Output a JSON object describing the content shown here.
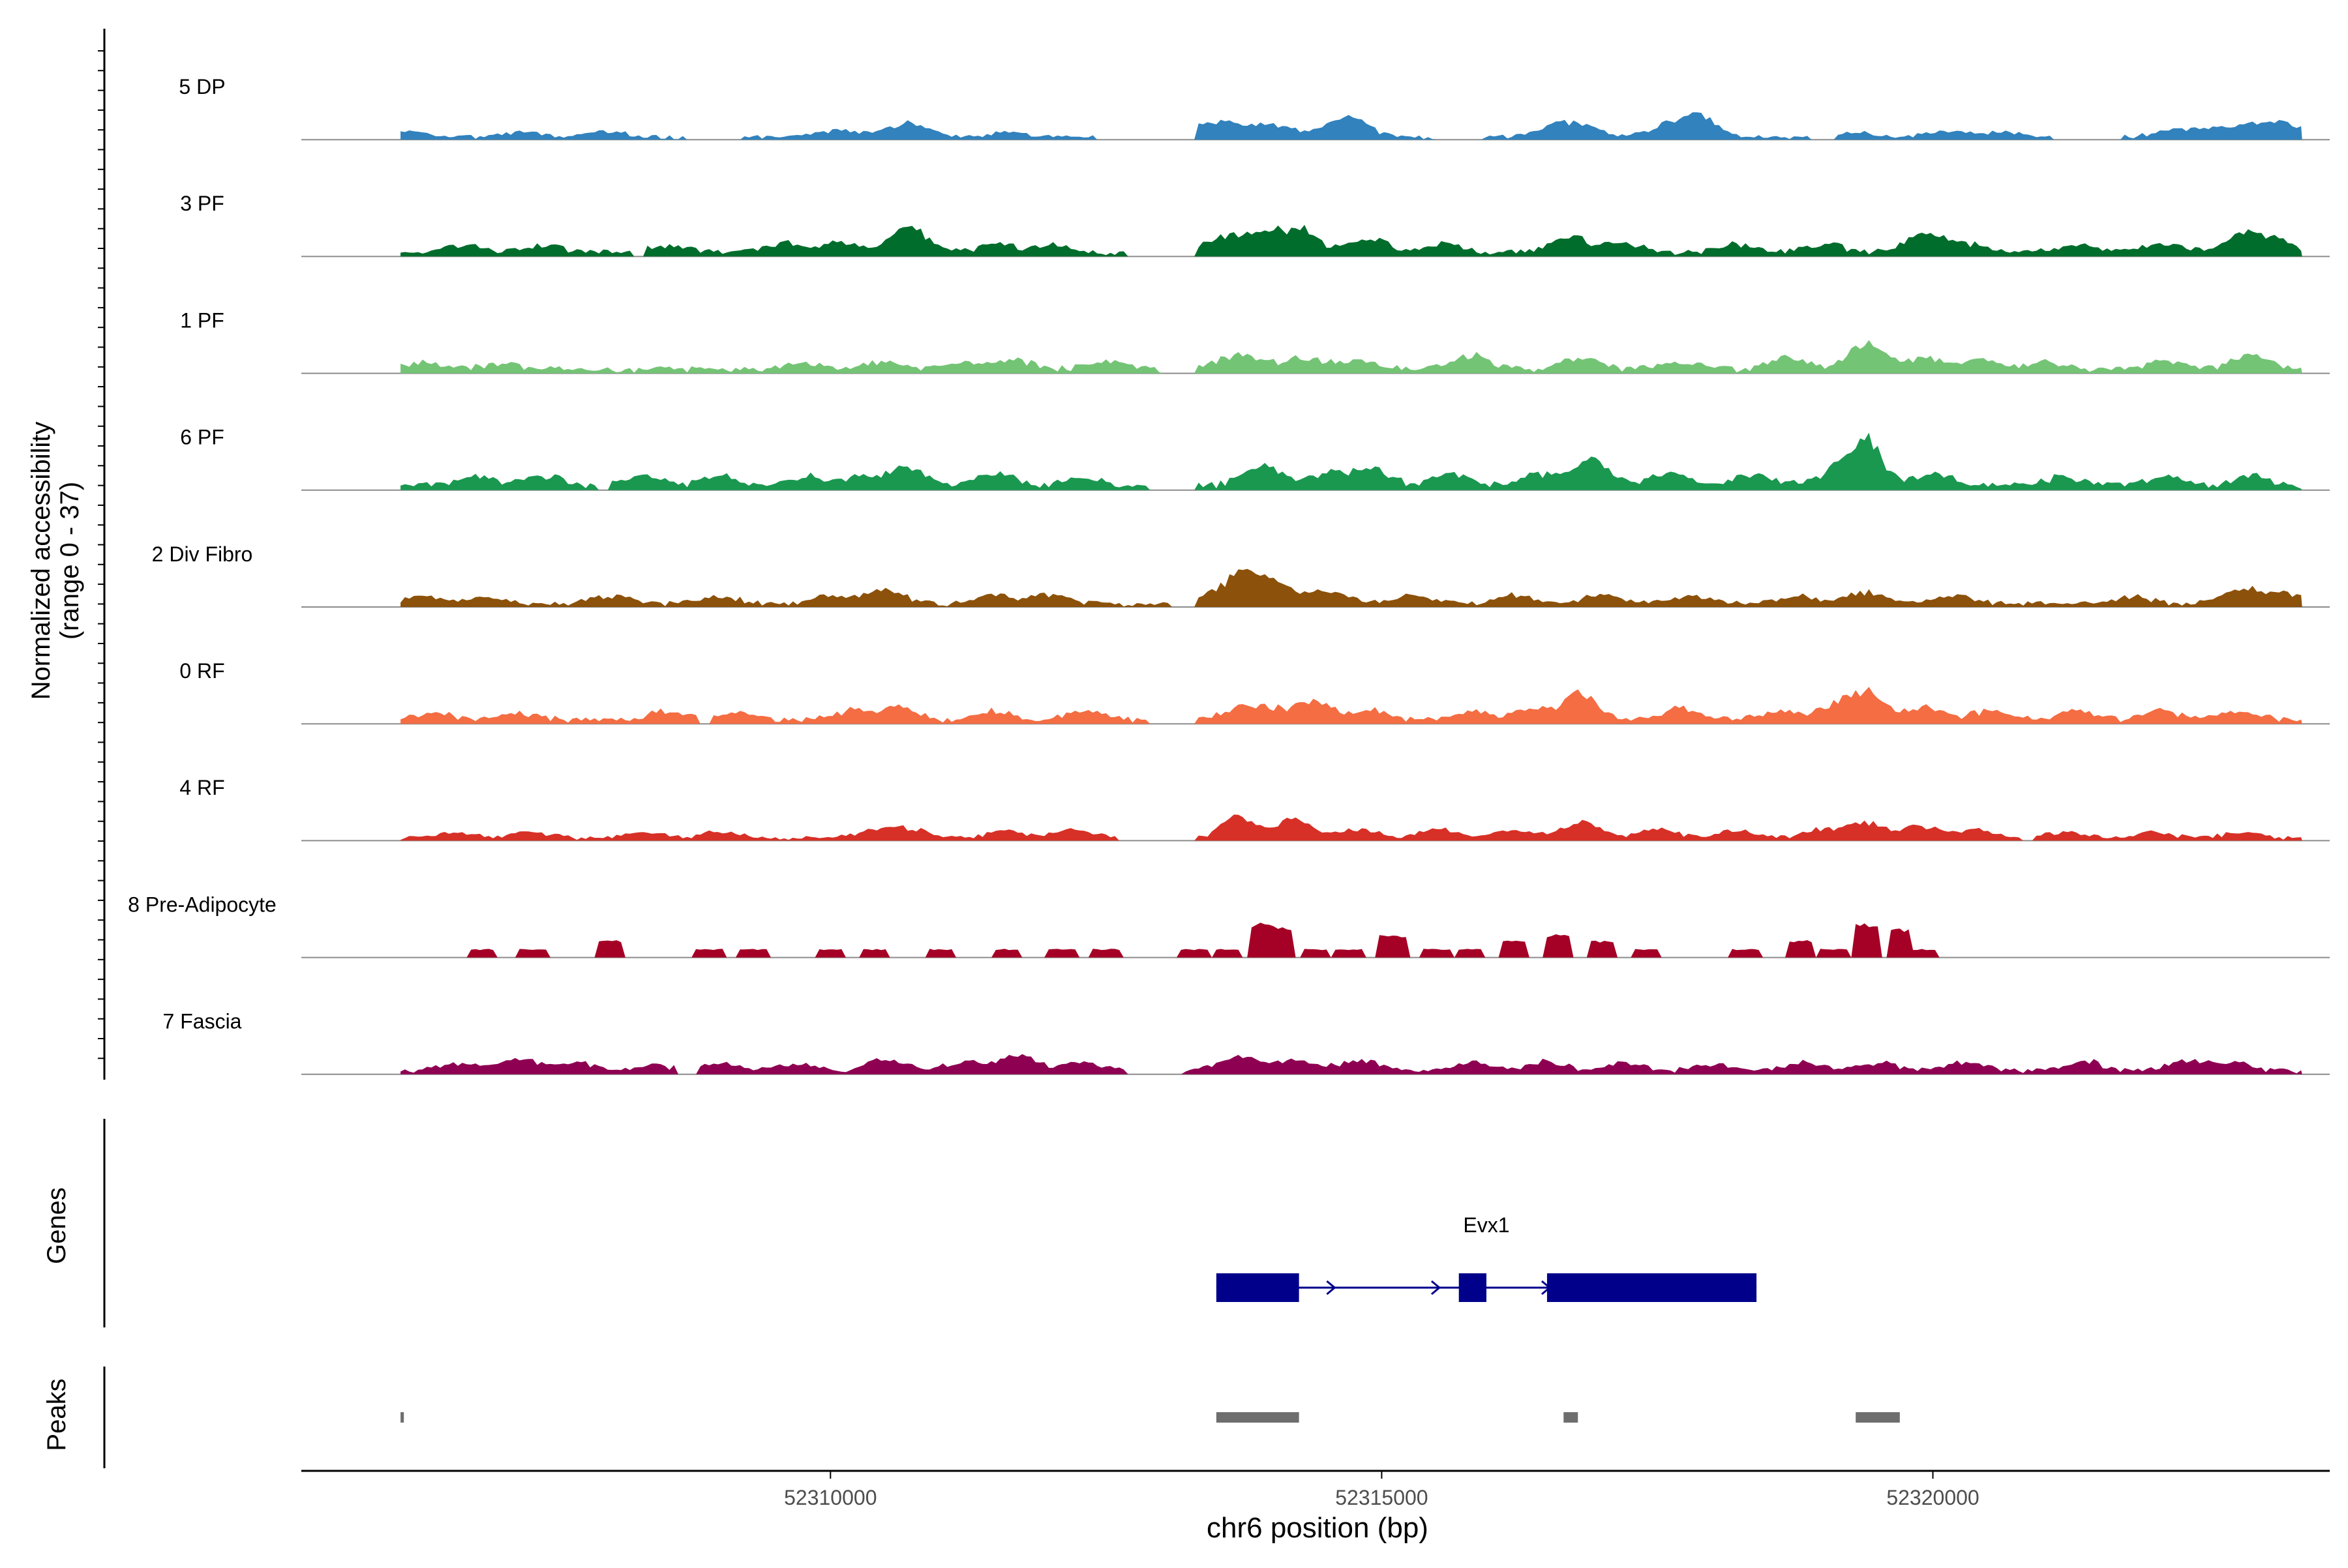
{
  "chart_data": {
    "type": "area",
    "title": "",
    "xlabel": "chr6 position (bp)",
    "ylabel": "Normalized accessibility\n(range 0 - 37)",
    "ylabel_lines": [
      "Normalized accessibility",
      "(range 0 - 37)"
    ],
    "y_range": [
      0,
      37
    ],
    "xlim": [
      52305200,
      52323600
    ],
    "data_extent": [
      52306100,
      52323350
    ],
    "x_ticks": [
      52310000,
      52315000,
      52320000
    ],
    "x_tick_labels": [
      "52310000",
      "52315000",
      "52320000"
    ],
    "tracks": [
      {
        "name": "5 DP",
        "color": "#3182bd",
        "baseline": 1.2,
        "peaks": [
          [
            52306200,
            2,
            50
          ],
          [
            52307200,
            1.8,
            50
          ],
          [
            52308000,
            1.8,
            60
          ],
          [
            52310100,
            2.2,
            80
          ],
          [
            52310700,
            5,
            60
          ],
          [
            52311600,
            1.6,
            50
          ],
          [
            52313500,
            5,
            70
          ],
          [
            52314000,
            4,
            80
          ],
          [
            52314700,
            7,
            60
          ],
          [
            52316700,
            5,
            80
          ],
          [
            52317600,
            4,
            60
          ],
          [
            52317900,
            7,
            50
          ],
          [
            52319300,
            1.6,
            60
          ],
          [
            52320100,
            2,
            60
          ],
          [
            52320600,
            2,
            60
          ],
          [
            52322300,
            3,
            80
          ],
          [
            52322900,
            4,
            80
          ],
          [
            52323200,
            3,
            60
          ]
        ],
        "gaps": [
          [
            52308700,
            52309200
          ],
          [
            52312400,
            52313300
          ],
          [
            52315500,
            52315900
          ],
          [
            52318900,
            52319100
          ],
          [
            52321100,
            52321700
          ]
        ]
      },
      {
        "name": "3 PF",
        "color": "#006d2c",
        "baseline": 1.8,
        "peaks": [
          [
            52306700,
            2.5,
            60
          ],
          [
            52307400,
            2.5,
            60
          ],
          [
            52308500,
            2.5,
            60
          ],
          [
            52309600,
            3,
            60
          ],
          [
            52310100,
            3,
            60
          ],
          [
            52310700,
            9,
            55
          ],
          [
            52311500,
            3,
            60
          ],
          [
            52312000,
            2.5,
            60
          ],
          [
            52313600,
            5,
            70
          ],
          [
            52314000,
            6,
            60
          ],
          [
            52314300,
            7,
            50
          ],
          [
            52314900,
            5,
            60
          ],
          [
            52315600,
            3,
            60
          ],
          [
            52316700,
            5,
            60
          ],
          [
            52317200,
            3,
            60
          ],
          [
            52318200,
            3,
            60
          ],
          [
            52319000,
            3,
            60
          ],
          [
            52319900,
            6,
            60
          ],
          [
            52320300,
            3,
            60
          ],
          [
            52321300,
            2.5,
            60
          ],
          [
            52322100,
            3,
            60
          ],
          [
            52322800,
            6,
            55
          ],
          [
            52323100,
            4,
            60
          ]
        ],
        "gaps": [
          [
            52312700,
            52313300
          ],
          [
            52308200,
            52308300
          ]
        ]
      },
      {
        "name": "1 PF",
        "color": "#74c476",
        "baseline": 1.8,
        "peaks": [
          [
            52306300,
            2.5,
            60
          ],
          [
            52307000,
            2,
            60
          ],
          [
            52309800,
            2,
            60
          ],
          [
            52310500,
            3,
            60
          ],
          [
            52311200,
            2,
            60
          ],
          [
            52311700,
            3,
            60
          ],
          [
            52312500,
            2.5,
            60
          ],
          [
            52313700,
            5,
            70
          ],
          [
            52314300,
            4,
            60
          ],
          [
            52314800,
            3,
            60
          ],
          [
            52315800,
            5,
            60
          ],
          [
            52316800,
            4,
            60
          ],
          [
            52317700,
            2.5,
            60
          ],
          [
            52318700,
            4,
            60
          ],
          [
            52319400,
            9,
            55
          ],
          [
            52319900,
            4,
            60
          ],
          [
            52320400,
            3,
            60
          ],
          [
            52321000,
            2.5,
            60
          ],
          [
            52322100,
            3,
            60
          ],
          [
            52322900,
            5,
            60
          ]
        ],
        "gaps": [
          [
            52313000,
            52313300
          ]
        ]
      },
      {
        "name": "6 PF",
        "color": "#1a9850",
        "baseline": 2.0,
        "peaks": [
          [
            52306800,
            3,
            60
          ],
          [
            52307400,
            3,
            60
          ],
          [
            52308300,
            3,
            60
          ],
          [
            52309000,
            3,
            60
          ],
          [
            52309800,
            3,
            60
          ],
          [
            52310300,
            3,
            60
          ],
          [
            52310700,
            6,
            60
          ],
          [
            52311500,
            4,
            60
          ],
          [
            52312300,
            3,
            60
          ],
          [
            52313900,
            7,
            60
          ],
          [
            52314500,
            4,
            60
          ],
          [
            52314900,
            5,
            60
          ],
          [
            52315600,
            4,
            60
          ],
          [
            52316400,
            4,
            60
          ],
          [
            52316900,
            9,
            55
          ],
          [
            52317600,
            4,
            60
          ],
          [
            52318400,
            4,
            60
          ],
          [
            52319100,
            5,
            60
          ],
          [
            52319400,
            15,
            50
          ],
          [
            52320000,
            4,
            60
          ],
          [
            52321200,
            3,
            60
          ],
          [
            52322100,
            3,
            60
          ],
          [
            52322900,
            4,
            50
          ]
        ],
        "gaps": [
          [
            52307900,
            52308000
          ],
          [
            52312900,
            52313300
          ]
        ]
      },
      {
        "name": "2 Div Fibro",
        "color": "#8c510a",
        "baseline": 1.5,
        "peaks": [
          [
            52306300,
            2.5,
            60
          ],
          [
            52306900,
            2,
            60
          ],
          [
            52308000,
            2.5,
            60
          ],
          [
            52309000,
            2.5,
            60
          ],
          [
            52310000,
            2.5,
            60
          ],
          [
            52310500,
            5,
            60
          ],
          [
            52311500,
            3,
            60
          ],
          [
            52312000,
            3,
            60
          ],
          [
            52313700,
            9,
            70
          ],
          [
            52314000,
            6,
            60
          ],
          [
            52314500,
            4,
            70
          ],
          [
            52315300,
            3,
            60
          ],
          [
            52316200,
            3,
            60
          ],
          [
            52317000,
            3,
            60
          ],
          [
            52317800,
            2.5,
            60
          ],
          [
            52318800,
            2.5,
            60
          ],
          [
            52319400,
            4,
            60
          ],
          [
            52320200,
            2.5,
            60
          ],
          [
            52321800,
            2.5,
            60
          ],
          [
            52322800,
            5,
            60
          ],
          [
            52323200,
            3,
            60
          ]
        ],
        "gaps": [
          [
            52313100,
            52313300
          ]
        ]
      },
      {
        "name": "0 RF",
        "color": "#f46d43",
        "baseline": 1.8,
        "peaks": [
          [
            52306400,
            2.5,
            60
          ],
          [
            52307200,
            2,
            60
          ],
          [
            52308500,
            3,
            60
          ],
          [
            52309200,
            2,
            60
          ],
          [
            52310200,
            3,
            60
          ],
          [
            52310600,
            4,
            60
          ],
          [
            52311500,
            3,
            60
          ],
          [
            52312300,
            3,
            60
          ],
          [
            52313700,
            3.5,
            60
          ],
          [
            52314000,
            3.5,
            60
          ],
          [
            52314400,
            6,
            60
          ],
          [
            52314900,
            3,
            60
          ],
          [
            52315800,
            3,
            60
          ],
          [
            52316400,
            3.5,
            60
          ],
          [
            52316800,
            9,
            50
          ],
          [
            52317700,
            4,
            60
          ],
          [
            52318600,
            3,
            60
          ],
          [
            52319100,
            4,
            60
          ],
          [
            52319400,
            9,
            55
          ],
          [
            52319900,
            4,
            60
          ],
          [
            52320500,
            3,
            60
          ],
          [
            52321300,
            3,
            60
          ],
          [
            52322100,
            3,
            60
          ],
          [
            52322800,
            3,
            60
          ]
        ],
        "gaps": [
          [
            52312900,
            52313300
          ],
          [
            52308800,
            52308900
          ]
        ]
      },
      {
        "name": "4 RF",
        "color": "#d73027",
        "baseline": 1.2,
        "peaks": [
          [
            52306600,
            2,
            60
          ],
          [
            52307300,
            2,
            60
          ],
          [
            52308300,
            2,
            60
          ],
          [
            52309000,
            2,
            60
          ],
          [
            52310400,
            2.5,
            60
          ],
          [
            52310700,
            3,
            60
          ],
          [
            52311600,
            2.5,
            60
          ],
          [
            52312200,
            3,
            60
          ],
          [
            52313700,
            8,
            50
          ],
          [
            52314200,
            7,
            55
          ],
          [
            52314800,
            3,
            60
          ],
          [
            52315500,
            3,
            60
          ],
          [
            52316200,
            2.5,
            60
          ],
          [
            52316800,
            5,
            60
          ],
          [
            52317500,
            3,
            60
          ],
          [
            52318200,
            2.5,
            60
          ],
          [
            52319000,
            3,
            60
          ],
          [
            52319400,
            5,
            60
          ],
          [
            52319900,
            4,
            60
          ],
          [
            52320400,
            3,
            60
          ],
          [
            52321200,
            2,
            60
          ],
          [
            52322000,
            2,
            60
          ],
          [
            52322800,
            2,
            60
          ]
        ],
        "gaps": [
          [
            52312600,
            52313300
          ],
          [
            52320800,
            52320900
          ]
        ]
      },
      {
        "name": "8 Pre-Adipocyte",
        "color": "#a50026",
        "baseline": 0,
        "peaks": [
          [
            52306850,
            3,
            40
          ],
          [
            52307300,
            3,
            40
          ],
          [
            52308000,
            6,
            40
          ],
          [
            52308900,
            3,
            40
          ],
          [
            52309300,
            3,
            40
          ],
          [
            52310000,
            3,
            40
          ],
          [
            52310400,
            3,
            40
          ],
          [
            52311000,
            3,
            40
          ],
          [
            52311600,
            3,
            40
          ],
          [
            52312100,
            3,
            40
          ],
          [
            52312500,
            3,
            40
          ],
          [
            52313300,
            3,
            40
          ],
          [
            52313600,
            3,
            40
          ],
          [
            52313900,
            12,
            35
          ],
          [
            52314100,
            11,
            35
          ],
          [
            52314400,
            3,
            40
          ],
          [
            52314700,
            3,
            40
          ],
          [
            52315100,
            8,
            40
          ],
          [
            52315500,
            3,
            40
          ],
          [
            52315800,
            3,
            40
          ],
          [
            52316200,
            6,
            40
          ],
          [
            52316600,
            8,
            40
          ],
          [
            52317000,
            6,
            40
          ],
          [
            52317400,
            3,
            40
          ],
          [
            52318300,
            3,
            40
          ],
          [
            52318800,
            6,
            40
          ],
          [
            52319100,
            3,
            40
          ],
          [
            52319400,
            12,
            40
          ],
          [
            52319700,
            10,
            35
          ],
          [
            52319900,
            3,
            40
          ]
        ],
        "gaps": []
      },
      {
        "name": "7 Fascia",
        "color": "#8e0152",
        "baseline": 1.5,
        "peaks": [
          [
            52306600,
            2.5,
            60
          ],
          [
            52307200,
            4,
            60
          ],
          [
            52307700,
            3,
            60
          ],
          [
            52308400,
            2,
            60
          ],
          [
            52309000,
            2.5,
            60
          ],
          [
            52309700,
            2.5,
            60
          ],
          [
            52310500,
            4,
            60
          ],
          [
            52311200,
            3,
            60
          ],
          [
            52311700,
            5,
            60
          ],
          [
            52312300,
            3,
            60
          ],
          [
            52313700,
            5,
            60
          ],
          [
            52314200,
            4,
            60
          ],
          [
            52314800,
            4,
            60
          ],
          [
            52315800,
            3,
            60
          ],
          [
            52316500,
            3,
            60
          ],
          [
            52317200,
            3,
            60
          ],
          [
            52318000,
            2.5,
            60
          ],
          [
            52318800,
            3,
            60
          ],
          [
            52319500,
            3,
            60
          ],
          [
            52320300,
            3,
            60
          ],
          [
            52321400,
            3,
            60
          ],
          [
            52322300,
            3,
            60
          ],
          [
            52322700,
            3,
            60
          ]
        ],
        "gaps": [
          [
            52308600,
            52308800
          ],
          [
            52312700,
            52313200
          ]
        ]
      }
    ],
    "genes": {
      "panel_label": "Genes",
      "gene_name": "Evx1",
      "strand": "+",
      "color": "#00008b",
      "start": 52313500,
      "end": 52318400,
      "exons": [
        [
          52313500,
          52314250
        ],
        [
          52315700,
          52315950
        ],
        [
          52316500,
          52318400
        ]
      ]
    },
    "peaks_track": {
      "panel_label": "Peaks",
      "color": "#6e6e6e",
      "intervals": [
        [
          52306100,
          52306130
        ],
        [
          52313500,
          52314250
        ],
        [
          52316650,
          52316780
        ],
        [
          52319300,
          52319700
        ]
      ]
    }
  }
}
